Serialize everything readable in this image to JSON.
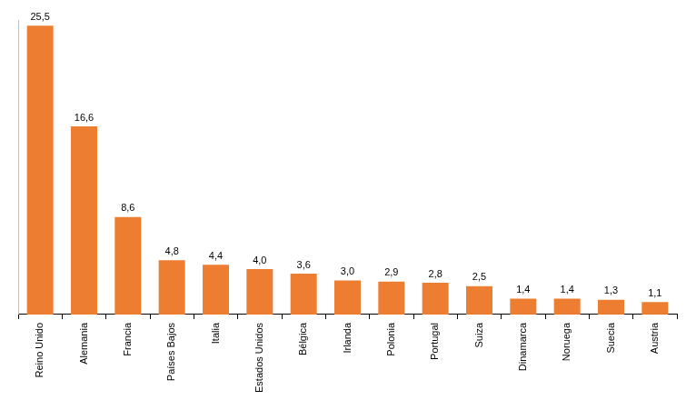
{
  "chart_data": {
    "type": "bar",
    "categories": [
      "Reino Unido",
      "Alemania",
      "Francia",
      "Países Bajos",
      "Italia",
      "Estados Unidos",
      "Bélgica",
      "Irlanda",
      "Polonia",
      "Portugal",
      "Suiza",
      "Dinamarca",
      "Noruega",
      "Suecia",
      "Austria"
    ],
    "values": [
      25.5,
      16.6,
      8.6,
      4.8,
      4.4,
      4.0,
      3.6,
      3.0,
      2.9,
      2.8,
      2.5,
      1.4,
      1.4,
      1.3,
      1.1
    ],
    "value_labels": [
      "25,5",
      "16,6",
      "8,6",
      "4,8",
      "4,4",
      "4,0",
      "3,6",
      "3,0",
      "2,9",
      "2,8",
      "2,5",
      "1,4",
      "1,4",
      "1,3",
      "1,1"
    ],
    "color": "#ed7d31",
    "ylim": [
      0,
      26
    ],
    "grid": false,
    "data_labels": true,
    "tick_labels": "x"
  }
}
